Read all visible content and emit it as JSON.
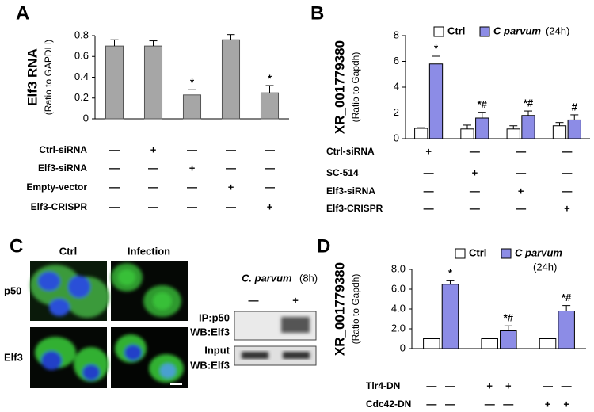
{
  "chart_data": [
    {
      "type": "bar",
      "panel": "A",
      "y_label": "Elf3 RNA",
      "y_sublabel": "(Ratio to GAPDH)",
      "values": [
        0.7,
        0.7,
        0.23,
        0.76,
        0.25
      ],
      "errors": [
        0.06,
        0.05,
        0.05,
        0.05,
        0.07
      ],
      "annotations": [
        null,
        null,
        "*",
        null,
        "*"
      ],
      "color": "#a6a6a6",
      "ylim": [
        0,
        0.8
      ],
      "yticks": [
        0,
        0.2,
        0.4,
        0.6,
        0.8
      ],
      "conditions": [
        {
          "label": "Ctrl-siRNA",
          "marks": [
            "—",
            "+",
            "—",
            "—",
            "—"
          ]
        },
        {
          "label": "Elf3-siRNA",
          "marks": [
            "—",
            "—",
            "+",
            "—",
            "—"
          ]
        },
        {
          "label": "Empty-vector",
          "marks": [
            "—",
            "—",
            "—",
            "+",
            "—"
          ]
        },
        {
          "label": "Elf3-CRISPR",
          "marks": [
            "—",
            "—",
            "—",
            "—",
            "+"
          ]
        }
      ]
    },
    {
      "type": "grouped_bar",
      "panel": "B",
      "y_label": "XR_001779380",
      "y_sublabel": "(Ratio to Gapdh)",
      "legend_note": "(24h)",
      "series": [
        {
          "name": "Ctrl",
          "color": "#ffffff",
          "values": [
            0.8,
            0.75,
            0.75,
            1.0
          ],
          "errors": [
            0.05,
            0.3,
            0.25,
            0.25
          ]
        },
        {
          "name": "C parvum",
          "color": "#8c8ce6",
          "values": [
            5.8,
            1.6,
            1.8,
            1.45
          ],
          "errors": [
            0.6,
            0.45,
            0.35,
            0.4
          ],
          "annotations": [
            "*",
            "*#",
            "*#",
            "#"
          ]
        }
      ],
      "ylim": [
        0,
        8
      ],
      "yticks": [
        0,
        2,
        4,
        6,
        8
      ],
      "conditions": [
        {
          "label": "Ctrl-siRNA",
          "marks": [
            "+",
            "—",
            "—",
            "—"
          ]
        },
        {
          "label": "SC-514",
          "marks": [
            "—",
            "+",
            "—",
            "—"
          ]
        },
        {
          "label": "Elf3-siRNA",
          "marks": [
            "—",
            "—",
            "+",
            "—"
          ]
        },
        {
          "label": "Elf3-CRISPR",
          "marks": [
            "—",
            "—",
            "—",
            "+"
          ]
        }
      ]
    },
    {
      "type": "grouped_bar",
      "panel": "D",
      "y_label": "XR_001779380",
      "y_sublabel": "(Ratio to Gapdh)",
      "legend_note": "(24h)",
      "series": [
        {
          "name": "Ctrl",
          "color": "#ffffff",
          "values": [
            1.0,
            1.0,
            1.0
          ],
          "errors": [
            0.05,
            0.05,
            0.05
          ]
        },
        {
          "name": "C parvum",
          "color": "#8c8ce6",
          "values": [
            6.5,
            1.8,
            3.8
          ],
          "errors": [
            0.35,
            0.5,
            0.55
          ],
          "annotations": [
            "*",
            "*#",
            "*#"
          ]
        }
      ],
      "ylim": [
        0,
        8
      ],
      "yticks": [
        0,
        {
          "value": 2,
          "label": "2.0"
        },
        {
          "value": 4,
          "label": "4.0"
        },
        {
          "value": 6,
          "label": "6.0"
        },
        {
          "value": 8,
          "label": "8.0"
        }
      ],
      "conditions": [
        {
          "label": "Tlr4-DN",
          "marks": [
            "—",
            "—",
            "+",
            "+",
            "—",
            "—"
          ]
        },
        {
          "label": "Cdc42-DN",
          "marks": [
            "—",
            "—",
            "—",
            "—",
            "+",
            "+"
          ]
        }
      ]
    }
  ],
  "panel_c": {
    "panel": "C",
    "columns": [
      "Ctrl",
      "Infection"
    ],
    "rows": [
      "p50",
      "Elf3"
    ],
    "blot_header": "C. parvum",
    "blot_time": "(8h)",
    "blot_lanes": [
      "—",
      "+"
    ],
    "blot_rows": [
      [
        "IP:p50",
        "WB:Elf3"
      ],
      [
        "Input",
        "WB:Elf3"
      ]
    ]
  }
}
